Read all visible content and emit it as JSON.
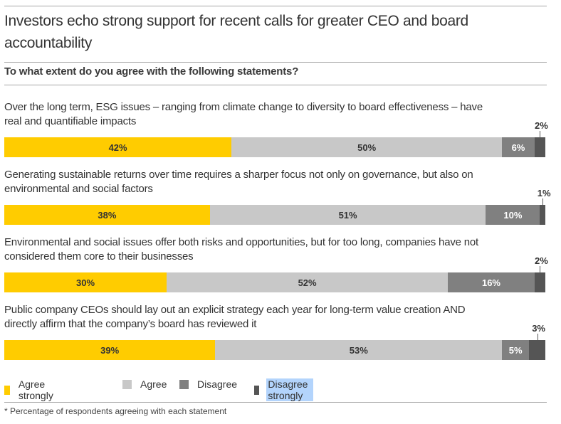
{
  "title": "Investors echo strong support for recent calls for greater CEO and board accountability",
  "subtitle": "To what extent do you agree with the following statements?",
  "footnote": "* Percentage of respondents agreeing with each statement",
  "colors": {
    "agree_strongly": "#ffcc00",
    "agree": "#c8c8c8",
    "disagree": "#808080",
    "disagree_strongly": "#555555",
    "label_dark": "#333333",
    "label_light": "#ffffff"
  },
  "legend": [
    {
      "label": "Agree strongly",
      "color": "#ffcc00"
    },
    {
      "label": "Agree",
      "color": "#c8c8c8"
    },
    {
      "label": "Disagree",
      "color": "#808080"
    },
    {
      "label": "Disagree strongly",
      "color": "#555555"
    }
  ],
  "chart_data": {
    "type": "bar",
    "orientation": "horizontal-stacked",
    "title": "Investors echo strong support for recent calls for greater CEO and board accountability",
    "subtitle": "To what extent do you agree with the following statements?",
    "unit": "%",
    "xlim": [
      0,
      100
    ],
    "grid": false,
    "legend_position": "bottom",
    "categories": [
      "Over the long term, ESG issues – ranging from climate change to diversity to board effectiveness – have real and quantifiable impacts",
      "Generating sustainable returns over time requires a sharper focus not only on governance, but also on environmental and social factors",
      "Environmental and social issues offer both risks and opportunities, but for too long, companies have not considered them core to their businesses",
      "Public company CEOs should lay out an explicit strategy each year for long-term value creation AND directly affirm that the company’s board has reviewed it"
    ],
    "series": [
      {
        "name": "Agree strongly",
        "values": [
          42,
          38,
          30,
          39
        ]
      },
      {
        "name": "Agree",
        "values": [
          50,
          51,
          52,
          53
        ]
      },
      {
        "name": "Disagree",
        "values": [
          6,
          10,
          16,
          5
        ]
      },
      {
        "name": "Disagree strongly",
        "values": [
          2,
          1,
          2,
          3
        ]
      }
    ],
    "data_labels": [
      [
        "42%",
        "50%",
        "6%",
        "2%"
      ],
      [
        "38%",
        "51%",
        "10%",
        "1%"
      ],
      [
        "30%",
        "52%",
        "16%",
        "2%"
      ],
      [
        "39%",
        "53%",
        "5%",
        "3%"
      ]
    ]
  }
}
